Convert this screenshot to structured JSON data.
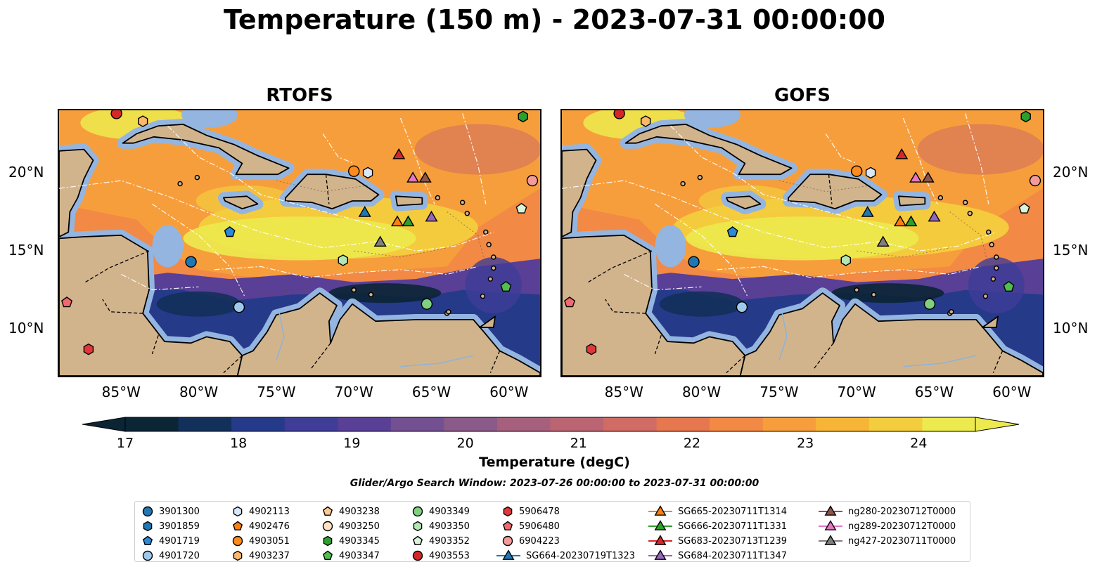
{
  "title": "Temperature (150 m) - 2023-07-31 00:00:00",
  "panels": [
    {
      "title": "RTOFS"
    },
    {
      "title": "GOFS"
    }
  ],
  "lon_labels": [
    "85°W",
    "80°W",
    "75°W",
    "70°W",
    "65°W",
    "60°W"
  ],
  "lat_labels": [
    "20°N",
    "15°N",
    "10°N"
  ],
  "colorbar": {
    "label": "Temperature (degC)",
    "ticks": [
      "17",
      "18",
      "19",
      "20",
      "21",
      "22",
      "23",
      "24"
    ],
    "range": [
      17,
      24.5
    ],
    "colors": [
      "#0b2535",
      "#13305a",
      "#263a8a",
      "#3f3d97",
      "#593f95",
      "#725091",
      "#8a5a88",
      "#a6607e",
      "#bb6573",
      "#d06c63",
      "#e6774f",
      "#f28944",
      "#f79e3c",
      "#f7b538",
      "#f4cd3e",
      "#ecea4e"
    ]
  },
  "search_window": "Glider/Argo Search Window: 2023-07-26 00:00:00 to 2023-07-31 00:00:00",
  "colors": {
    "land": "#d2b48c",
    "shallow": "#94b5e0",
    "deep": "#0b2535",
    "warm": "#ecea4e"
  },
  "legend": [
    {
      "label": "3901300",
      "marker": "circle",
      "color": "#1f77b4"
    },
    {
      "label": "3901859",
      "marker": "hexagon",
      "color": "#1f77b4"
    },
    {
      "label": "4901719",
      "marker": "pentagon",
      "color": "#2c8ad6"
    },
    {
      "label": "4901720",
      "marker": "circle",
      "color": "#9ec9ec"
    },
    {
      "label": "4902113",
      "marker": "hexagon",
      "color": "#d8e8f8"
    },
    {
      "label": "4902476",
      "marker": "pentagon",
      "color": "#ff7f0e"
    },
    {
      "label": "4903051",
      "marker": "circle",
      "color": "#ff8c1a"
    },
    {
      "label": "4903237",
      "marker": "hexagon",
      "color": "#ffb86a"
    },
    {
      "label": "4903238",
      "marker": "pentagon",
      "color": "#ffc994"
    },
    {
      "label": "4903250",
      "marker": "circle",
      "color": "#ffe2c2"
    },
    {
      "label": "4903345",
      "marker": "hexagon",
      "color": "#2ca02c"
    },
    {
      "label": "4903347",
      "marker": "pentagon",
      "color": "#4fbf4f"
    },
    {
      "label": "4903349",
      "marker": "circle",
      "color": "#7fd07f"
    },
    {
      "label": "4903350",
      "marker": "hexagon",
      "color": "#b2e6b2"
    },
    {
      "label": "4903352",
      "marker": "pentagon",
      "color": "#daf4da"
    },
    {
      "label": "4903553",
      "marker": "circle",
      "color": "#d62728"
    },
    {
      "label": "5906478",
      "marker": "hexagon",
      "color": "#e0383a"
    },
    {
      "label": "5906480",
      "marker": "pentagon",
      "color": "#f06a6d"
    },
    {
      "label": "6904223",
      "marker": "circle",
      "color": "#f39b9b"
    },
    {
      "label": "SG664-20230719T1323",
      "marker": "triangle-line",
      "color": "#1f77b4"
    },
    {
      "label": "SG665-20230711T1314",
      "marker": "triangle-line",
      "color": "#ff7f0e"
    },
    {
      "label": "SG666-20230711T1331",
      "marker": "triangle-line",
      "color": "#2ca02c"
    },
    {
      "label": "SG683-20230713T1239",
      "marker": "triangle-line",
      "color": "#d62728"
    },
    {
      "label": "SG684-20230711T1347",
      "marker": "triangle-line",
      "color": "#9467bd"
    },
    {
      "label": "ng280-20230712T0000",
      "marker": "triangle-line",
      "color": "#8c564b"
    },
    {
      "label": "ng289-20230712T0000",
      "marker": "triangle-line",
      "color": "#e377c2"
    },
    {
      "label": "ng427-20230711T0000",
      "marker": "triangle-line",
      "color": "#7f7f7f"
    }
  ],
  "observations": [
    {
      "id": "3901300",
      "lon": -80.5,
      "lat": 14.3
    },
    {
      "id": "4901719",
      "lon": -78.0,
      "lat": 16.2
    },
    {
      "id": "4901720",
      "lon": -77.4,
      "lat": 11.4
    },
    {
      "id": "4902113",
      "lon": -69.1,
      "lat": 20.0
    },
    {
      "id": "4903051",
      "lon": -70.0,
      "lat": 20.1
    },
    {
      "id": "4903237",
      "lon": -83.6,
      "lat": 23.3
    },
    {
      "id": "4903345",
      "lon": -59.1,
      "lat": 23.6
    },
    {
      "id": "4903347",
      "lon": -60.2,
      "lat": 12.7
    },
    {
      "id": "4903349",
      "lon": -65.3,
      "lat": 11.6
    },
    {
      "id": "4903350",
      "lon": -70.7,
      "lat": 14.4
    },
    {
      "id": "4903352",
      "lon": -59.2,
      "lat": 17.7
    },
    {
      "id": "4903553",
      "lon": -85.3,
      "lat": 23.8
    },
    {
      "id": "5906478",
      "lon": -87.1,
      "lat": 8.7
    },
    {
      "id": "5906480",
      "lon": -88.5,
      "lat": 11.7
    },
    {
      "id": "6904223",
      "lon": -58.5,
      "lat": 19.5
    },
    {
      "id": "SG664-20230719T1323",
      "lon": -69.3,
      "lat": 17.5
    },
    {
      "id": "SG665-20230711T1314",
      "lon": -67.2,
      "lat": 16.9
    },
    {
      "id": "SG666-20230711T1331",
      "lon": -66.5,
      "lat": 16.9
    },
    {
      "id": "SG683-20230713T1239",
      "lon": -67.1,
      "lat": 21.2
    },
    {
      "id": "SG684-20230711T1347",
      "lon": -65.0,
      "lat": 17.2
    },
    {
      "id": "ng280-20230712T0000",
      "lon": -65.4,
      "lat": 19.7
    },
    {
      "id": "ng289-20230712T0000",
      "lon": -66.2,
      "lat": 19.7
    },
    {
      "id": "ng427-20230711T0000",
      "lon": -68.3,
      "lat": 15.6
    }
  ]
}
